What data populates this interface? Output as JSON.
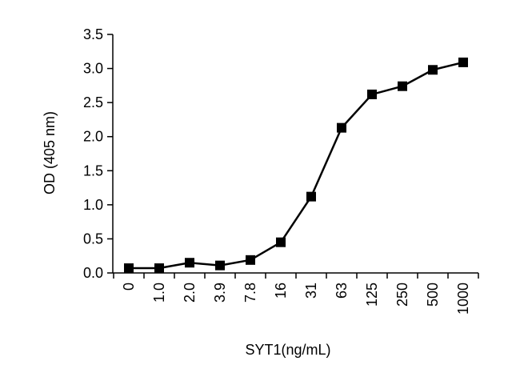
{
  "chart_data": {
    "type": "line",
    "title": "",
    "xlabel": "SYT1(ng/mL)",
    "ylabel": "OD (405 nm)",
    "categories": [
      "0",
      "1.0",
      "2.0",
      "3.9",
      "7.8",
      "16",
      "31",
      "63",
      "125",
      "250",
      "500",
      "1000"
    ],
    "series": [
      {
        "values": [
          0.07,
          0.07,
          0.15,
          0.11,
          0.19,
          0.45,
          1.12,
          2.13,
          2.62,
          2.74,
          2.98,
          3.09
        ]
      }
    ],
    "ylim": [
      0,
      3.5
    ],
    "yticks": [
      "0.0",
      "0.5",
      "1.0",
      "1.5",
      "2.0",
      "2.5",
      "3.0",
      "3.5"
    ],
    "grid": false,
    "legend": "none",
    "colors": {
      "line": "#000000",
      "marker": "#000000",
      "axis": "#000000"
    },
    "marker": "square"
  }
}
